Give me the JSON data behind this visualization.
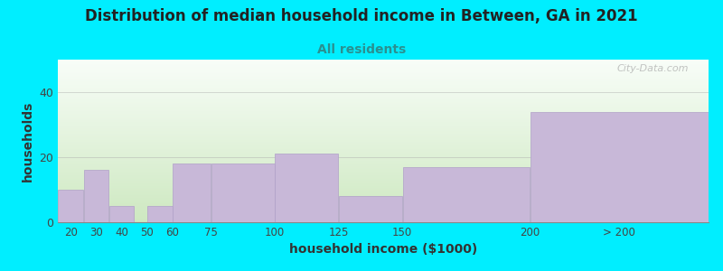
{
  "title": "Distribution of median household income in Between, GA in 2021",
  "subtitle": "All residents",
  "xlabel": "household income ($1000)",
  "ylabel": "households",
  "background_outer": "#00eeff",
  "bar_color": "#c8b8d8",
  "bar_edge_color": "#b0a0c8",
  "values": [
    10,
    16,
    5,
    0,
    5,
    18,
    18,
    21,
    8,
    17,
    34
  ],
  "bar_lefts": [
    15,
    25,
    35,
    45,
    50,
    60,
    75,
    100,
    125,
    150,
    200
  ],
  "bar_widths": [
    10,
    10,
    10,
    10,
    10,
    15,
    25,
    25,
    25,
    50,
    70
  ],
  "xlim": [
    15,
    270
  ],
  "ylim": [
    0,
    50
  ],
  "yticks": [
    0,
    20,
    40
  ],
  "xtick_labels": [
    "20",
    "30",
    "40",
    "50",
    "60",
    "75",
    "100",
    "125",
    "150",
    "200",
    "> 200"
  ],
  "xtick_positions": [
    20,
    30,
    40,
    50,
    60,
    75,
    100,
    125,
    150,
    200,
    235
  ],
  "title_fontsize": 12,
  "subtitle_fontsize": 10,
  "axis_label_fontsize": 10,
  "title_color": "#222222",
  "subtitle_color": "#2a9090",
  "watermark": "City-Data.com",
  "grad_top": "#f8fdf8",
  "grad_mid": "#edf8e8",
  "grad_bot": "#d8ecd0"
}
